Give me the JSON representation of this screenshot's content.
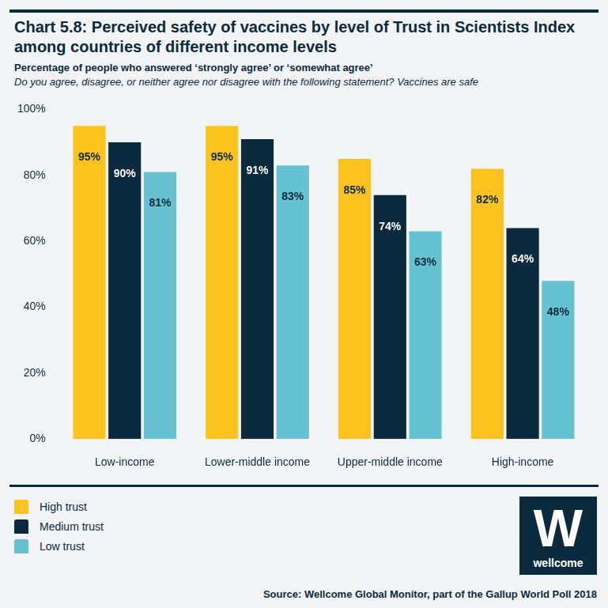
{
  "chart_data": {
    "type": "bar",
    "title": "Chart 5.8: Perceived safety of vaccines by level of Trust in Scientists Index among countries of different income levels",
    "subtitle": "Percentage of people who answered ‘strongly agree’ or ‘somewhat agree’",
    "question": "Do you agree, disagree, or neither agree nor disagree with the following statement? Vaccines are safe",
    "source": "Source: Wellcome Global Monitor, part of the Gallup World Poll 2018",
    "logo": {
      "mark": "W",
      "text": "wellcome"
    },
    "categories": [
      "Low-income",
      "Lower-middle income",
      "Upper-middle income",
      "High-income"
    ],
    "series": [
      {
        "name": "High trust",
        "color": "#fcc31e",
        "values": [
          95,
          95,
          85,
          82
        ],
        "value_labels": [
          "95%",
          "95%",
          "85%",
          "82%"
        ]
      },
      {
        "name": "Medium trust",
        "color": "#0b2a3d",
        "values": [
          90,
          91,
          74,
          64
        ],
        "value_labels": [
          "90%",
          "91%",
          "74%",
          "64%"
        ]
      },
      {
        "name": "Low trust",
        "color": "#66c1d1",
        "values": [
          81,
          83,
          63,
          48
        ],
        "value_labels": [
          "81%",
          "83%",
          "63%",
          "48%"
        ]
      }
    ],
    "ylim": [
      0,
      100
    ],
    "yticks": [
      {
        "value": 0,
        "label": "0%"
      },
      {
        "value": 20,
        "label": "20%"
      },
      {
        "value": 40,
        "label": "40%"
      },
      {
        "value": 60,
        "label": "60%"
      },
      {
        "value": 80,
        "label": "80%"
      },
      {
        "value": 100,
        "label": "100%"
      }
    ],
    "grid": false,
    "legend": "bottom-left",
    "data_labels": true
  }
}
